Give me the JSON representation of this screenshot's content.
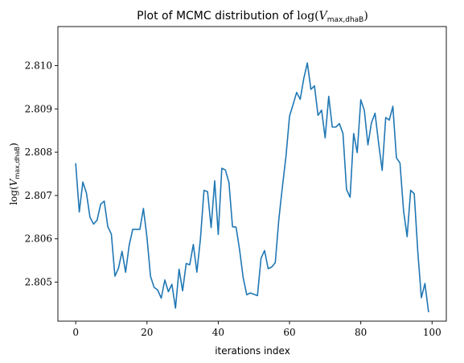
{
  "chart_data": {
    "type": "line",
    "title": {
      "prefix": "Plot of MCMC distribution of ",
      "fn": "log(",
      "var": "V",
      "sub": "max,dhaB",
      "close": ")"
    },
    "xlabel": "iterations index",
    "ylabel": {
      "fn": "log(",
      "var": "V",
      "sub": "max,dhaB",
      "close": ")"
    },
    "xlim": [
      -5,
      104
    ],
    "ylim": [
      2.8041,
      2.8109
    ],
    "xticks": [
      0,
      20,
      40,
      60,
      80,
      100
    ],
    "xtick_labels": [
      "0",
      "20",
      "40",
      "60",
      "80",
      "100"
    ],
    "yticks": [
      2.805,
      2.806,
      2.807,
      2.808,
      2.809,
      2.81
    ],
    "ytick_labels": [
      "2.805",
      "2.806",
      "2.807",
      "2.808",
      "2.809",
      "2.810"
    ],
    "grid": false,
    "color": "#1f77b4",
    "x": [
      0,
      1,
      2,
      3,
      4,
      5,
      6,
      7,
      8,
      9,
      10,
      11,
      12,
      13,
      14,
      15,
      16,
      17,
      18,
      19,
      20,
      21,
      22,
      23,
      24,
      25,
      26,
      27,
      28,
      29,
      30,
      31,
      32,
      33,
      34,
      35,
      36,
      37,
      38,
      39,
      40,
      41,
      42,
      43,
      44,
      45,
      46,
      47,
      48,
      49,
      50,
      51,
      52,
      53,
      54,
      55,
      56,
      57,
      58,
      59,
      60,
      61,
      62,
      63,
      64,
      65,
      66,
      67,
      68,
      69,
      70,
      71,
      72,
      73,
      74,
      75,
      76,
      77,
      78,
      79,
      80,
      81,
      82,
      83,
      84,
      85,
      86,
      87,
      88,
      89,
      90,
      91,
      92,
      93,
      94,
      95,
      96,
      97,
      98,
      99
    ],
    "y": [
      2.80773,
      2.80662,
      2.80731,
      2.80706,
      2.8065,
      2.80634,
      2.80643,
      2.8068,
      2.80687,
      2.80628,
      2.80611,
      2.80514,
      2.80532,
      2.80571,
      2.80523,
      2.80585,
      2.80622,
      2.80622,
      2.80622,
      2.8067,
      2.80603,
      2.80513,
      2.80488,
      2.80482,
      2.80463,
      2.80505,
      2.80478,
      2.80495,
      2.8044,
      2.8053,
      2.8048,
      2.80543,
      2.8054,
      2.80587,
      2.80523,
      2.806,
      2.80712,
      2.80709,
      2.80626,
      2.80734,
      2.8061,
      2.80763,
      2.80759,
      2.8073,
      2.80628,
      2.80627,
      2.80574,
      2.8051,
      2.80471,
      2.80475,
      2.80472,
      2.80469,
      2.80555,
      2.80573,
      2.80531,
      2.80535,
      2.80545,
      2.80645,
      2.8072,
      2.8079,
      2.80883,
      2.8091,
      2.80938,
      2.80922,
      2.8097,
      2.81006,
      2.80945,
      2.80953,
      2.80885,
      2.80897,
      2.80833,
      2.80929,
      2.80858,
      2.80858,
      2.80866,
      2.80843,
      2.80714,
      2.80696,
      2.80843,
      2.80799,
      2.80921,
      2.80896,
      2.80817,
      2.80868,
      2.8089,
      2.80821,
      2.80758,
      2.8088,
      2.80874,
      2.80906,
      2.80787,
      2.80775,
      2.80665,
      2.80605,
      2.80712,
      2.80704,
      2.8057,
      2.80464,
      2.80497,
      2.80432
    ]
  }
}
